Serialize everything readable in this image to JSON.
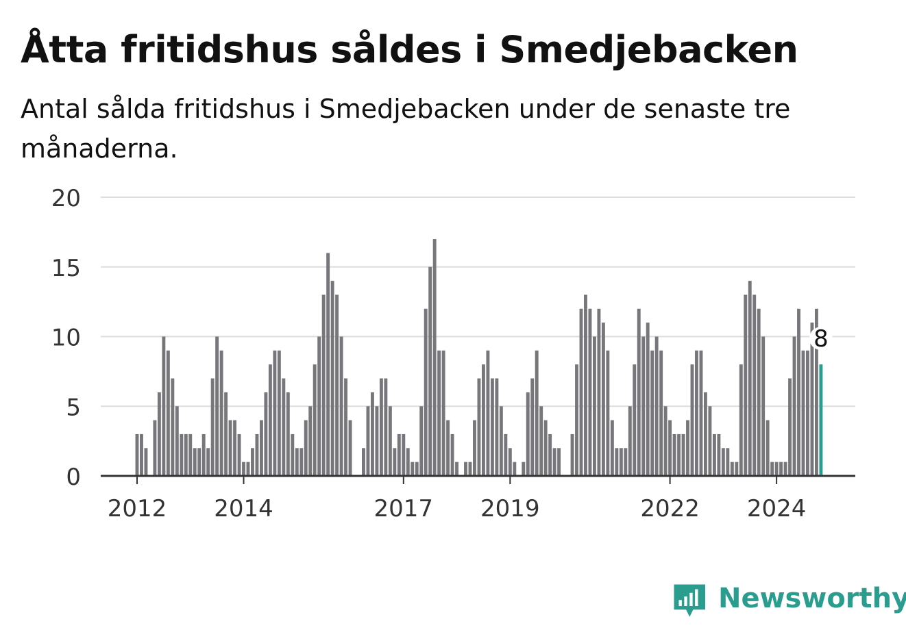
{
  "title": "Åtta fritidshus såldes i Smedjebacken",
  "subtitle": "Antal sålda fritidshus i Smedjebacken under de senaste tre månaderna.",
  "brand": {
    "name": "Newsworthy",
    "icon": "newsworthy-logo-icon",
    "color": "#2a9d8f"
  },
  "chart_data": {
    "type": "bar",
    "title": "Åtta fritidshus såldes i Smedjebacken",
    "xlabel": "",
    "ylabel": "",
    "ylim": [
      0,
      20
    ],
    "yticks": [
      0,
      5,
      10,
      15,
      20
    ],
    "grid": true,
    "bar_color": "#77767b",
    "highlight_color": "#2a9d8f",
    "highlight_label": "8",
    "x_tick_labels": [
      {
        "label": "2012",
        "index": 0
      },
      {
        "label": "2014",
        "index": 24
      },
      {
        "label": "2017",
        "index": 60
      },
      {
        "label": "2019",
        "index": 84
      },
      {
        "label": "2022",
        "index": 120
      },
      {
        "label": "2024",
        "index": 144
      }
    ],
    "values": [
      3,
      3,
      2,
      null,
      4,
      6,
      10,
      9,
      7,
      5,
      3,
      3,
      3,
      2,
      2,
      3,
      2,
      7,
      10,
      9,
      6,
      4,
      4,
      3,
      1,
      1,
      2,
      3,
      4,
      6,
      8,
      9,
      9,
      7,
      6,
      3,
      2,
      2,
      4,
      5,
      8,
      10,
      13,
      16,
      14,
      13,
      10,
      7,
      4,
      null,
      null,
      2,
      5,
      6,
      5,
      7,
      7,
      5,
      2,
      3,
      3,
      2,
      1,
      1,
      5,
      12,
      15,
      17,
      9,
      9,
      4,
      3,
      1,
      null,
      1,
      1,
      4,
      7,
      8,
      9,
      7,
      7,
      5,
      3,
      2,
      1,
      null,
      1,
      6,
      7,
      9,
      5,
      4,
      3,
      2,
      2,
      null,
      null,
      3,
      8,
      12,
      13,
      12,
      10,
      12,
      11,
      9,
      4,
      2,
      2,
      2,
      5,
      8,
      12,
      10,
      11,
      9,
      10,
      9,
      5,
      4,
      3,
      3,
      3,
      4,
      8,
      9,
      9,
      6,
      5,
      3,
      3,
      2,
      2,
      1,
      1,
      8,
      13,
      14,
      13,
      12,
      10,
      4,
      1,
      1,
      1,
      1,
      7,
      10,
      12,
      9,
      9,
      11,
      12,
      8
    ]
  }
}
